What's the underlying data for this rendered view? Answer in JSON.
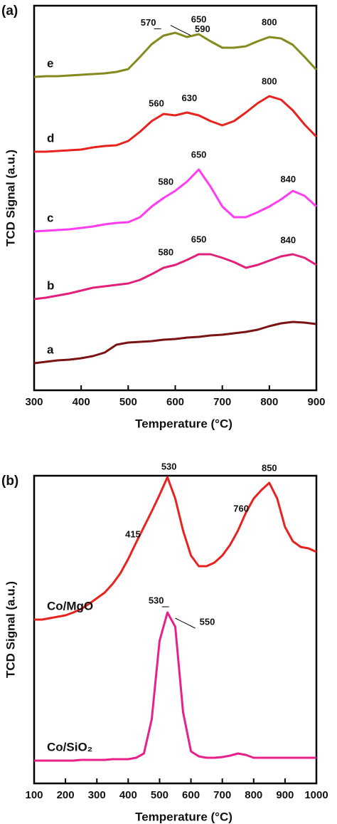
{
  "chart_data": [
    {
      "type": "line",
      "label": "(a)",
      "xlabel": "Temperature (°C)",
      "ylabel": "TCD Signal (a.u.)",
      "xlim": [
        300,
        900
      ],
      "xticks": [
        300,
        400,
        500,
        600,
        700,
        800,
        900
      ],
      "ylim": [
        0,
        540
      ],
      "x": [
        300,
        325,
        350,
        375,
        400,
        425,
        450,
        475,
        500,
        525,
        550,
        575,
        600,
        625,
        650,
        675,
        700,
        725,
        750,
        775,
        800,
        825,
        850,
        875,
        900
      ],
      "series": [
        {
          "name": "e",
          "color": "#858a1e",
          "peaks": [
            570,
            590,
            650,
            800
          ],
          "values": [
            440,
            441,
            441,
            442,
            443,
            444,
            445,
            447,
            451,
            468,
            486,
            498,
            502,
            496,
            500,
            490,
            481,
            481,
            483,
            490,
            496,
            494,
            485,
            468,
            450
          ]
        },
        {
          "name": "d",
          "color": "#e8221e",
          "peaks": [
            560,
            630,
            800
          ],
          "values": [
            335,
            335,
            336,
            337,
            338,
            341,
            343,
            344,
            350,
            363,
            378,
            388,
            386,
            390,
            386,
            378,
            372,
            378,
            390,
            403,
            413,
            408,
            393,
            373,
            356
          ]
        },
        {
          "name": "c",
          "color": "#ff3cf0",
          "peaks": [
            580,
            650,
            840
          ],
          "values": [
            223,
            224,
            225,
            226,
            228,
            230,
            233,
            235,
            236,
            243,
            258,
            270,
            280,
            293,
            310,
            286,
            258,
            243,
            243,
            250,
            258,
            268,
            280,
            273,
            258
          ]
        },
        {
          "name": "b",
          "color": "#e2207c",
          "peaks": [
            580,
            650,
            840
          ],
          "values": [
            128,
            130,
            133,
            136,
            140,
            144,
            146,
            148,
            150,
            155,
            163,
            172,
            176,
            183,
            191,
            191,
            186,
            180,
            172,
            176,
            182,
            188,
            191,
            186,
            176
          ]
        },
        {
          "name": "a",
          "color": "#7a1414",
          "peaks": [],
          "values": [
            38,
            40,
            42,
            43,
            45,
            48,
            53,
            64,
            67,
            68,
            69,
            71,
            72,
            74,
            75,
            77,
            78,
            80,
            82,
            85,
            90,
            94,
            96,
            95,
            93
          ]
        }
      ]
    },
    {
      "type": "line",
      "label": "(b)",
      "xlabel": "Temperature (°C)",
      "ylabel": "TCD Signal (a.u.)",
      "xlim": [
        100,
        1000
      ],
      "xticks": [
        100,
        200,
        300,
        400,
        500,
        600,
        700,
        800,
        900,
        1000
      ],
      "ylim": [
        0,
        432
      ],
      "x": [
        100,
        125,
        150,
        175,
        200,
        225,
        250,
        275,
        300,
        325,
        350,
        375,
        400,
        425,
        450,
        475,
        500,
        525,
        550,
        575,
        600,
        625,
        650,
        675,
        700,
        725,
        750,
        775,
        800,
        825,
        850,
        875,
        900,
        925,
        950,
        975,
        1000
      ],
      "series": [
        {
          "name": "Co/MgO",
          "color": "#e8221e",
          "peaks": [
            415,
            530,
            760,
            850
          ],
          "values": [
            230,
            230,
            232,
            234,
            236,
            240,
            245,
            252,
            260,
            268,
            280,
            295,
            315,
            338,
            360,
            382,
            405,
            430,
            400,
            355,
            320,
            305,
            305,
            310,
            320,
            335,
            355,
            380,
            400,
            412,
            422,
            400,
            360,
            340,
            332,
            330,
            325
          ]
        },
        {
          "name": "Co/SiO₂",
          "color": "#e8208a",
          "peaks": [
            530,
            550
          ],
          "values": [
            32,
            32,
            32,
            32,
            32,
            32,
            33,
            33,
            33,
            33,
            34,
            34,
            34,
            36,
            42,
            90,
            200,
            240,
            220,
            100,
            45,
            38,
            36,
            36,
            37,
            39,
            42,
            40,
            36,
            36,
            36,
            36,
            36,
            36,
            36,
            36,
            36
          ]
        }
      ]
    }
  ]
}
